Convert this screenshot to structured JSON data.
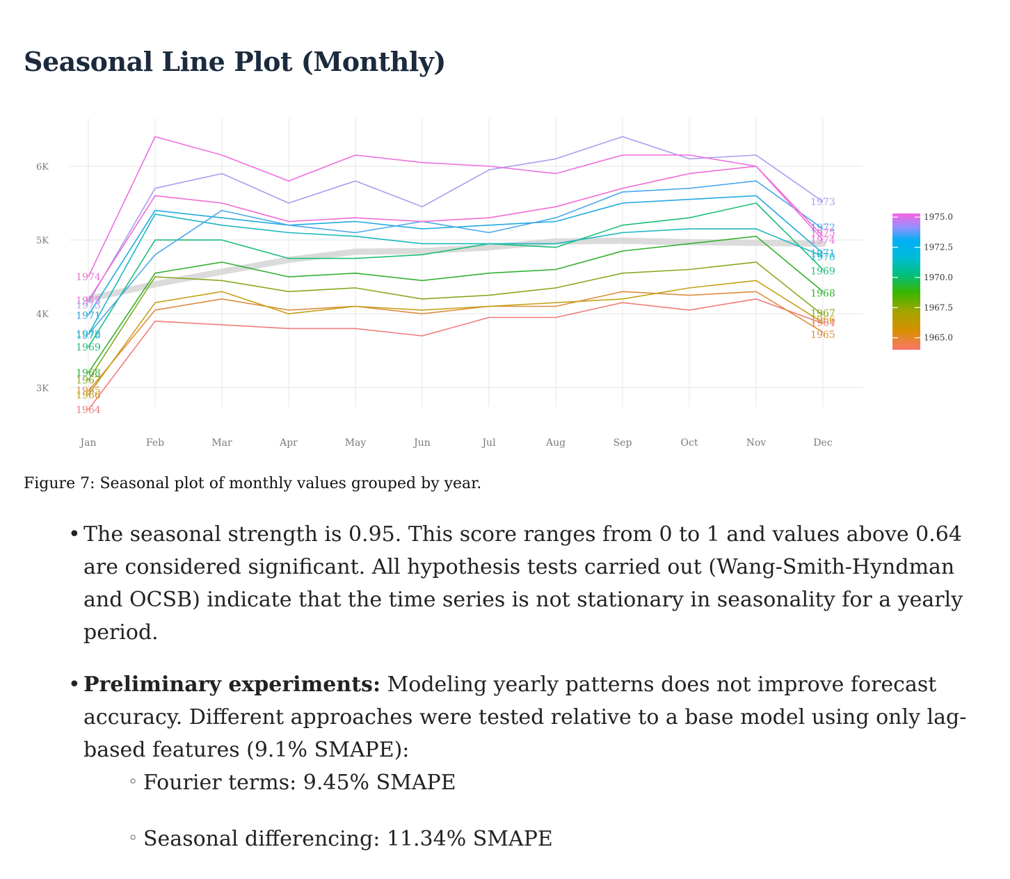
{
  "title": "Seasonal Line Plot (Monthly)",
  "caption": "Figure 7: Seasonal plot of monthly values grouped by year.",
  "bullets": {
    "b1": "The seasonal strength is 0.95. This score ranges from 0 to 1 and values above 0.64 are considered significant. All hypothesis tests carried out (Wang-Smith-Hyndman and OCSB) indicate that the time series is not stationary in seasonality for a yearly period.",
    "b2_bold": "Preliminary experiments:",
    "b2_text": " Modeling yearly patterns does not improve forecast accuracy. Different approaches were tested relative to a base model using only lag-based features (9.1% SMAPE):",
    "sub": [
      "Fourier terms: 9.45% SMAPE",
      "Seasonal differencing: 11.34% SMAPE"
    ],
    "bullet_glyph": "•",
    "sub_glyph": "◦"
  },
  "chart_data": {
    "type": "line",
    "categories": [
      "Jan",
      "Feb",
      "Mar",
      "Apr",
      "May",
      "Jun",
      "Jul",
      "Aug",
      "Sep",
      "Oct",
      "Nov",
      "Dec"
    ],
    "ylim": [
      2550,
      6650
    ],
    "yticks": [
      3000,
      4000,
      5000,
      6000
    ],
    "ytick_labels": [
      "3K",
      "4K",
      "5K",
      "6K"
    ],
    "grid": true,
    "colorbar": {
      "range": [
        1964,
        1975.3
      ],
      "ticks": [
        1965.0,
        1967.5,
        1970.0,
        1972.5,
        1975.0
      ],
      "tick_labels": [
        "1965.0",
        "1967.5",
        "1970.0",
        "1972.5",
        "1975.0"
      ],
      "position": "right"
    },
    "mean_line": {
      "values": [
        4200,
        4400,
        4570,
        4730,
        4840,
        4850,
        4900,
        4980,
        4990,
        4970,
        4960,
        4950
      ],
      "color": "#d9d9d9"
    },
    "series": [
      {
        "name": "1964",
        "color": "#f07c7c",
        "values": [
          2700,
          3900,
          3850,
          3800,
          3800,
          3700,
          3950,
          3950,
          4150,
          4050,
          4200,
          3870
        ]
      },
      {
        "name": "1965",
        "color": "#dd8d3c",
        "values": [
          2950,
          4050,
          4200,
          4050,
          4100,
          4000,
          4100,
          4100,
          4300,
          4250,
          4300,
          3750
        ]
      },
      {
        "name": "1966",
        "color": "#c6a017",
        "values": [
          2900,
          4150,
          4300,
          4000,
          4100,
          4050,
          4100,
          4150,
          4200,
          4350,
          4450,
          3880
        ]
      },
      {
        "name": "1967",
        "color": "#86a91e",
        "values": [
          3100,
          4500,
          4450,
          4300,
          4350,
          4200,
          4250,
          4350,
          4550,
          4600,
          4700,
          3980
        ]
      },
      {
        "name": "1968",
        "color": "#33b12f",
        "values": [
          3200,
          4550,
          4700,
          4500,
          4550,
          4450,
          4550,
          4600,
          4850,
          4950,
          5050,
          4300
        ]
      },
      {
        "name": "1969",
        "color": "#1dbf78",
        "values": [
          3550,
          5000,
          5000,
          4750,
          4750,
          4800,
          4950,
          4900,
          5200,
          5300,
          5500,
          4600
        ]
      },
      {
        "name": "1970",
        "color": "#1cb8bf",
        "values": [
          3720,
          5350,
          5200,
          5100,
          5050,
          4950,
          4950,
          4950,
          5100,
          5150,
          5150,
          4780
        ]
      },
      {
        "name": "1971",
        "color": "#22a9e0",
        "values": [
          3980,
          5400,
          5300,
          5200,
          5250,
          5150,
          5200,
          5250,
          5500,
          5550,
          5600,
          4820
        ]
      },
      {
        "name": "1972",
        "color": "#4aa7ec",
        "values": [
          3720,
          4800,
          5400,
          5200,
          5100,
          5250,
          5100,
          5300,
          5650,
          5700,
          5800,
          5150
        ]
      },
      {
        "name": "1973",
        "color": "#a89df0",
        "values": [
          4150,
          5700,
          5900,
          5500,
          5800,
          5450,
          5950,
          6100,
          6400,
          6100,
          6150,
          5520
        ]
      },
      {
        "name": "1975",
        "color": "#f06ad5",
        "values": [
          4180,
          5600,
          5500,
          5250,
          5300,
          5250,
          5300,
          5450,
          5700,
          5900,
          6000,
          5050
        ]
      },
      {
        "name": "1974",
        "color": "#ee6ee0",
        "values": [
          4500,
          6400,
          6150,
          5800,
          6150,
          6050,
          6000,
          5900,
          6150,
          6150,
          6000,
          5000
        ]
      }
    ],
    "start_labels": [
      {
        "text": "1974",
        "color": "#e975d6",
        "y": 4500
      },
      {
        "text": "1975",
        "color": "#f06ad5",
        "y": 4180
      },
      {
        "text": "1973",
        "color": "#b39ae8",
        "y": 4120
      },
      {
        "text": "1971",
        "color": "#22a9e0",
        "y": 3980
      },
      {
        "text": "1972",
        "color": "#4aa7ec",
        "y": 3730
      },
      {
        "text": "1970",
        "color": "#1cb8bf",
        "y": 3710
      },
      {
        "text": "1969",
        "color": "#1dbf78",
        "y": 3550
      },
      {
        "text": "1968",
        "color": "#33b12f",
        "y": 3200
      },
      {
        "text": "1967",
        "color": "#86a91e",
        "y": 3100
      },
      {
        "text": "1965",
        "color": "#dd8d3c",
        "y": 2960
      },
      {
        "text": "1966",
        "color": "#c6a017",
        "y": 2900
      },
      {
        "text": "1964",
        "color": "#f07c7c",
        "y": 2700
      }
    ],
    "end_labels": [
      {
        "text": "1973",
        "color": "#a89df0",
        "y": 5520
      },
      {
        "text": "1972",
        "color": "#4aa7ec",
        "y": 5170
      },
      {
        "text": "1975",
        "color": "#f06ad5",
        "y": 5100
      },
      {
        "text": "1974",
        "color": "#ee6ee0",
        "y": 5000
      },
      {
        "text": "1971",
        "color": "#22a9e0",
        "y": 4820
      },
      {
        "text": "1970",
        "color": "#1cb8bf",
        "y": 4770
      },
      {
        "text": "1969",
        "color": "#1dbf78",
        "y": 4580
      },
      {
        "text": "1968",
        "color": "#33b12f",
        "y": 4280
      },
      {
        "text": "1967",
        "color": "#86a91e",
        "y": 4010
      },
      {
        "text": "1966",
        "color": "#c6a017",
        "y": 3920
      },
      {
        "text": "1964",
        "color": "#f07c7c",
        "y": 3880
      },
      {
        "text": "1965",
        "color": "#dd8d3c",
        "y": 3720
      }
    ]
  }
}
